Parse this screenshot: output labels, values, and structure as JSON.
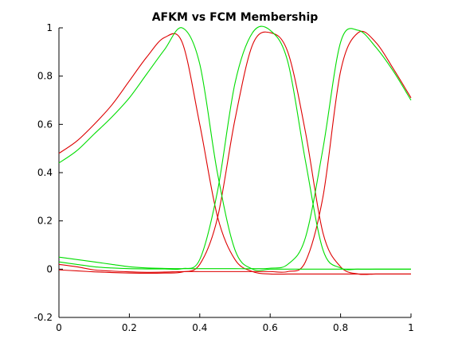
{
  "chart_data": {
    "type": "line",
    "title": "AFKM vs FCM Membership",
    "xlabel": "",
    "ylabel": "",
    "xlim": [
      0,
      1
    ],
    "ylim": [
      -0.2,
      1
    ],
    "xticks": [
      "0",
      "0.2",
      "0.4",
      "0.6",
      "0.8",
      "1"
    ],
    "yticks": [
      "-0.2",
      "0",
      "0.2",
      "0.4",
      "0.6",
      "0.8",
      "1"
    ],
    "grid": false,
    "legend": "none",
    "x": [
      0,
      0.05,
      0.1,
      0.15,
      0.2,
      0.25,
      0.3,
      0.35,
      0.4,
      0.45,
      0.5,
      0.55,
      0.6,
      0.65,
      0.7,
      0.75,
      0.8,
      0.85,
      0.9,
      0.95,
      1
    ],
    "series": [
      {
        "color": "#dd0000",
        "values": [
          0.48,
          0.53,
          0.6,
          0.68,
          0.78,
          0.88,
          0.96,
          0.94,
          0.6,
          0.22,
          0.04,
          -0.01,
          -0.02,
          -0.02,
          -0.02,
          -0.02,
          -0.02,
          -0.02,
          -0.02,
          -0.02,
          -0.02
        ]
      },
      {
        "color": "#dd0000",
        "values": [
          -0.003,
          -0.007,
          -0.011,
          -0.014,
          -0.016,
          -0.017,
          -0.016,
          -0.012,
          0.02,
          0.21,
          0.62,
          0.93,
          0.98,
          0.9,
          0.57,
          0.15,
          0.01,
          -0.02,
          -0.02,
          -0.02,
          -0.02
        ]
      },
      {
        "color": "#dd0000",
        "values": [
          0.02,
          0.01,
          -0.003,
          -0.008,
          -0.011,
          -0.013,
          -0.012,
          -0.01,
          -0.01,
          -0.01,
          -0.01,
          -0.01,
          -0.01,
          -0.01,
          0.03,
          0.3,
          0.82,
          0.98,
          0.94,
          0.83,
          0.71
        ]
      },
      {
        "color": "#00dd00",
        "values": [
          0.44,
          0.49,
          0.56,
          0.63,
          0.71,
          0.81,
          0.91,
          1.0,
          0.85,
          0.4,
          0.08,
          0.0,
          0.0,
          0.0,
          0.0,
          0.0,
          0.0,
          0.0,
          0.0,
          0.0,
          0.0
        ]
      },
      {
        "color": "#00dd00",
        "values": [
          0.03,
          0.02,
          0.01,
          0.005,
          0.002,
          0.001,
          0.001,
          0.002,
          0.04,
          0.32,
          0.77,
          0.98,
          0.99,
          0.86,
          0.45,
          0.08,
          0.005,
          0.0,
          0.0,
          0.0,
          0.0
        ]
      },
      {
        "color": "#00dd00",
        "values": [
          0.05,
          0.04,
          0.03,
          0.02,
          0.01,
          0.005,
          0.003,
          0.002,
          0.002,
          0.002,
          0.002,
          0.002,
          0.004,
          0.02,
          0.13,
          0.5,
          0.94,
          0.99,
          0.92,
          0.82,
          0.7
        ]
      }
    ]
  }
}
